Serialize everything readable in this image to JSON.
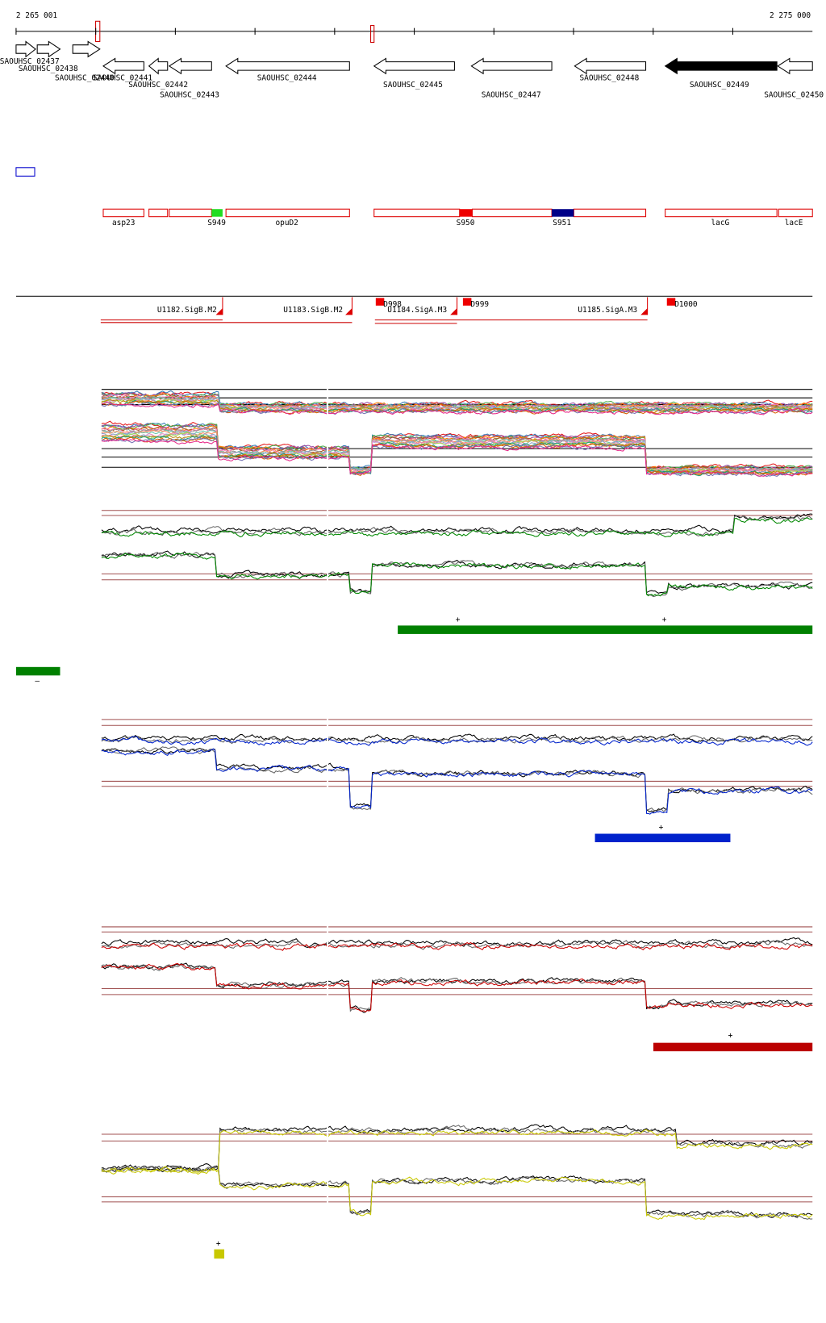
{
  "coordinates": {
    "start": "2 265 001",
    "end": "2 275 000"
  },
  "genes": [
    "SAOUHSC_02437",
    "SAOUHSC_02438",
    "SAOUHSC_02440",
    "SAOUHSC_02441",
    "SAOUHSC_02442",
    "SAOUHSC_02443",
    "SAOUHSC_02444",
    "SAOUHSC_02445",
    "SAOUHSC_02447",
    "SAOUHSC_02448",
    "SAOUHSC_02449",
    "SAOUHSC_02450"
  ],
  "features": [
    "asp23",
    "S949",
    "opuD2",
    "S950",
    "S951",
    "lacG",
    "lacE"
  ],
  "promoters": [
    "U1182.SigB.M2",
    "U1183.SigB.M2",
    "U1184.SigA.M3",
    "U1185.SigA.M3"
  ],
  "terminators": [
    "D998",
    "D999",
    "D1000"
  ],
  "markers": [
    "+",
    "+",
    "–",
    "+",
    "+",
    "+"
  ]
}
